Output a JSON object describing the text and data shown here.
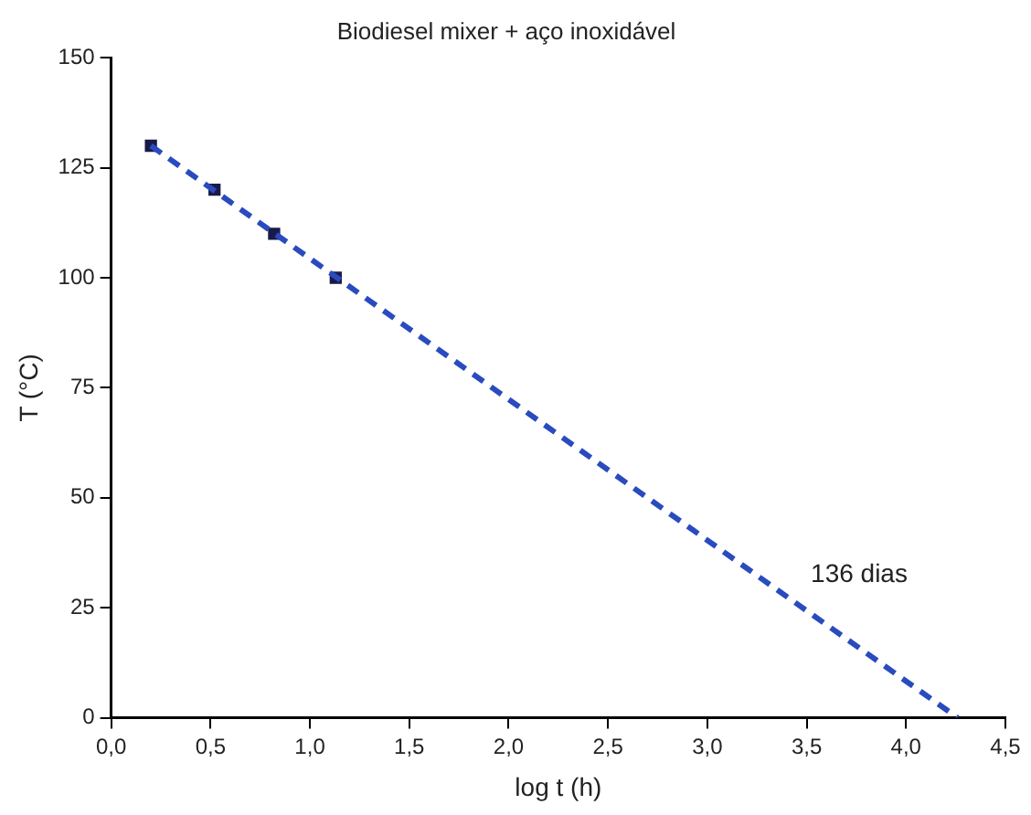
{
  "chart_data": {
    "type": "scatter",
    "title": "Biodiesel mixer + aço inoxidável",
    "xlabel": "log t (h)",
    "ylabel": "T (°C)",
    "series": [
      {
        "type": "scatter",
        "color": "#1a1a4a",
        "x": [
          0.2,
          0.52,
          0.82,
          1.13
        ],
        "values": [
          130,
          120,
          110,
          100
        ],
        "marker": "square"
      },
      {
        "type": "line",
        "color": "#2a4bbf",
        "x": [
          0.2,
          4.26
        ],
        "values": [
          130,
          0
        ],
        "line_style": "dashed",
        "marker": "none"
      }
    ],
    "xlim": [
      0,
      4.5
    ],
    "ylim": [
      0,
      150
    ],
    "xticks": [
      {
        "value": 0,
        "label": "0,0"
      },
      {
        "value": 0.5,
        "label": "0,5"
      },
      {
        "value": 1,
        "label": "1,0"
      },
      {
        "value": 1.5,
        "label": "1,5"
      },
      {
        "value": 2,
        "label": "2,0"
      },
      {
        "value": 2.5,
        "label": "2,5"
      },
      {
        "value": 3,
        "label": "3,0"
      },
      {
        "value": 3.5,
        "label": "3,5"
      },
      {
        "value": 4,
        "label": "4,0"
      },
      {
        "value": 4.5,
        "label": "4,5"
      }
    ],
    "yticks": [
      0,
      25,
      50,
      75,
      100,
      125,
      150
    ],
    "annotations": [
      "136 dias"
    ],
    "grid": false,
    "legend": false
  }
}
